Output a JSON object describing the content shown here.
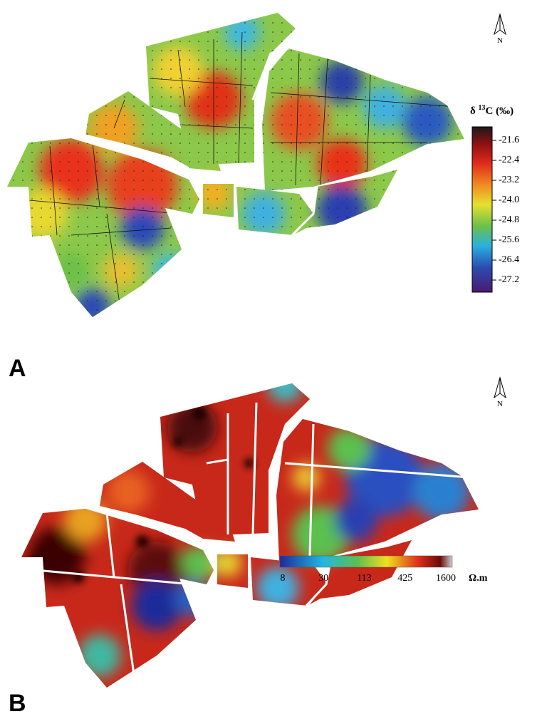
{
  "panel_a": {
    "label": "A",
    "north": "N",
    "legend": {
      "title": {
        "symbol": "δ",
        "superscript": "13",
        "unit": "C (‰)"
      },
      "ticks": [
        -21.6,
        -22.4,
        -23.2,
        {
          "value": -24,
          "label": "-24.0"
        },
        -24.8,
        -25.6,
        -26.4,
        -27.2
      ]
    }
  },
  "panel_b": {
    "label": "B",
    "north": "N",
    "legend": {
      "ticks": [
        8,
        30,
        113,
        425,
        1600
      ],
      "unit": "Ω.m"
    }
  }
}
